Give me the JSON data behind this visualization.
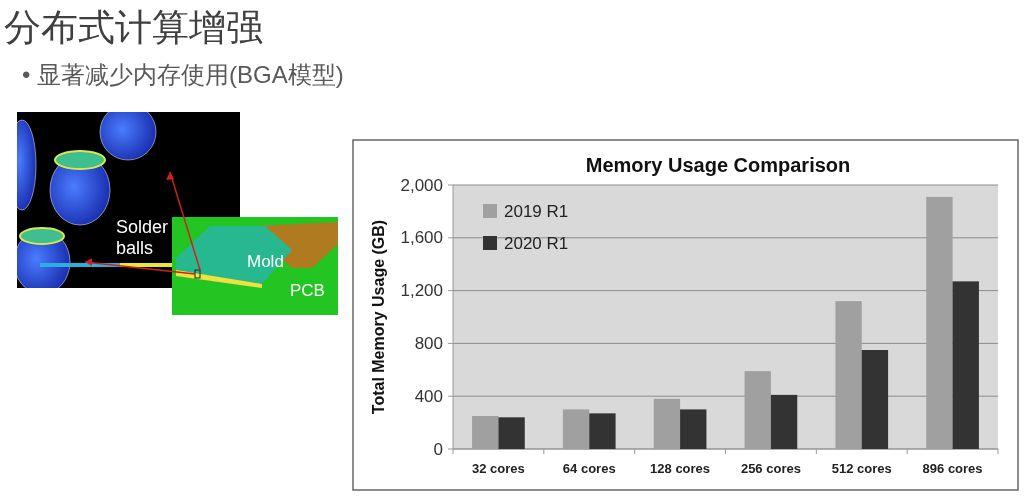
{
  "chart_data": [
    {
      "type": "other",
      "title": "分布式计算增强",
      "subtitle": "• 显著减少内存使用(BGA模型)",
      "annotations": [
        "Solder balls",
        "Mold",
        "PCB"
      ]
    },
    {
      "type": "bar",
      "title": "Memory Usage Comparison",
      "ylabel": "Total Memory Usage (GB)",
      "categories": [
        "32 cores",
        "64 cores",
        "128 cores",
        "256 cores",
        "512 cores",
        "896 cores"
      ],
      "series": [
        {
          "name": "2019 R1",
          "color": "#a0a0a0",
          "values": [
            250,
            300,
            380,
            590,
            1120,
            1910
          ]
        },
        {
          "name": "2020 R1",
          "color": "#333333",
          "values": [
            240,
            270,
            300,
            410,
            750,
            1270
          ]
        }
      ],
      "ylim": [
        0,
        2000
      ],
      "yticks": [
        0,
        400,
        800,
        {
          "value": 1200,
          "label": "1,200"
        },
        {
          "value": 1600,
          "label": "1,600"
        },
        {
          "value": 2000,
          "label": "2,000"
        }
      ],
      "grid": "y",
      "legend": "top left"
    }
  ]
}
